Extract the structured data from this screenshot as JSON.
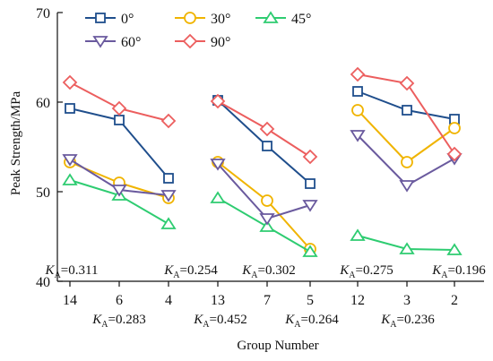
{
  "chart_data": {
    "type": "line",
    "xlabel": "Group Number",
    "ylabel": "Peak Strength/MPa",
    "ylim": [
      40,
      70
    ],
    "yticks": [
      40,
      50,
      60,
      70
    ],
    "categories": [
      "14",
      "6",
      "4",
      "13",
      "7",
      "5",
      "12",
      "3",
      "2"
    ],
    "groups": [
      [
        0,
        1,
        2
      ],
      [
        3,
        4,
        5
      ],
      [
        6,
        7,
        8
      ]
    ],
    "series": [
      {
        "name": "0°",
        "color": "#1f4e8c",
        "marker": "square",
        "values": [
          59.3,
          58.0,
          51.5,
          60.2,
          55.1,
          50.9,
          61.2,
          59.1,
          58.1
        ]
      },
      {
        "name": "30°",
        "color": "#f0b400",
        "marker": "circle",
        "values": [
          53.3,
          51.0,
          49.3,
          53.3,
          49.0,
          43.6,
          59.1,
          53.3,
          57.1
        ]
      },
      {
        "name": "45°",
        "color": "#2ecc71",
        "marker": "triangle-up",
        "values": [
          51.3,
          49.6,
          46.4,
          49.3,
          46.1,
          43.3,
          45.1,
          43.6,
          43.5
        ]
      },
      {
        "name": "60°",
        "color": "#6a5a9e",
        "marker": "triangle-down",
        "values": [
          53.6,
          50.2,
          49.6,
          53.1,
          47.0,
          48.5,
          56.3,
          50.7,
          53.7
        ]
      },
      {
        "name": "90°",
        "color": "#ec5e5e",
        "marker": "diamond",
        "values": [
          62.2,
          59.3,
          57.9,
          60.1,
          57.0,
          53.9,
          63.1,
          62.1,
          54.2
        ]
      }
    ],
    "ka_labels": [
      {
        "base": "K",
        "sub": "A",
        "value": "=0.311"
      },
      {
        "base": "K",
        "sub": "A",
        "value": "=0.254"
      },
      {
        "base": "K",
        "sub": "A",
        "value": "=0.302"
      },
      {
        "base": "K",
        "sub": "A",
        "value": "=0.275"
      },
      {
        "base": "K",
        "sub": "A",
        "value": "=0.196"
      },
      {
        "base": "K",
        "sub": "A",
        "value": "=0.283"
      },
      {
        "base": "K",
        "sub": "A",
        "value": "=0.452"
      },
      {
        "base": "K",
        "sub": "A",
        "value": "=0.264"
      },
      {
        "base": "K",
        "sub": "A",
        "value": "=0.236"
      }
    ],
    "legend_placement": "top-left",
    "grid": false
  }
}
